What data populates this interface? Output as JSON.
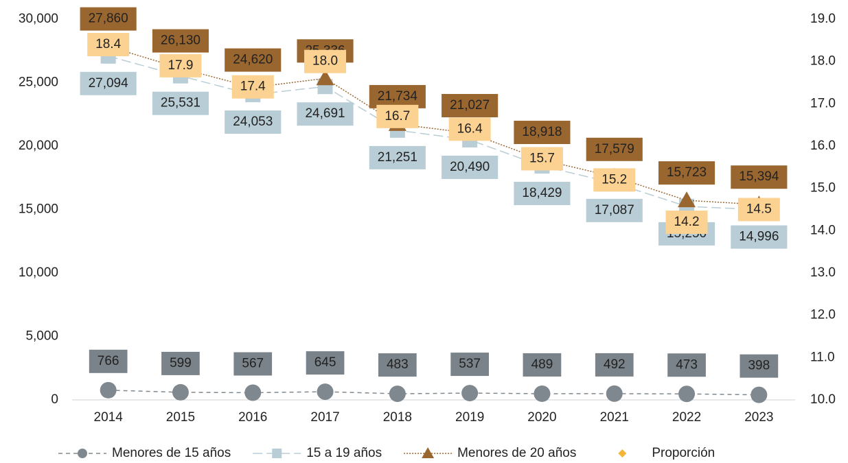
{
  "chart_data": {
    "type": "line",
    "categories": [
      "2014",
      "2015",
      "2016",
      "2017",
      "2018",
      "2019",
      "2020",
      "2021",
      "2022",
      "2023"
    ],
    "ylim": [
      0,
      30000
    ],
    "yticks": [
      0,
      {
        "value": 5000,
        "label": "5,000"
      },
      {
        "value": 10000,
        "label": "10,000"
      },
      {
        "value": 15000,
        "label": "15,000"
      },
      {
        "value": 20000,
        "label": "20,000"
      },
      {
        "value": 25000,
        "label": "25,000"
      },
      {
        "value": 30000,
        "label": "30,000"
      }
    ],
    "y2lim": [
      10,
      19
    ],
    "y2ticks": [
      {
        "value": 10,
        "label": "10.0"
      },
      {
        "value": 11,
        "label": "11.0"
      },
      {
        "value": 12,
        "label": "12.0"
      },
      {
        "value": 13,
        "label": "13.0"
      },
      {
        "value": 14,
        "label": "14.0"
      },
      {
        "value": 15,
        "label": "15.0"
      },
      {
        "value": 16,
        "label": "16.0"
      },
      {
        "value": 17,
        "label": "17.0"
      },
      {
        "value": 18,
        "label": "18.0"
      },
      {
        "value": 19,
        "label": "19.0"
      }
    ],
    "legend": "bottom",
    "series": [
      {
        "name": "Menores de 15 años",
        "color": "#7f888e",
        "marker": "circle",
        "label_color": "#7a8389",
        "label_position": "above",
        "values": [
          766,
          599,
          567,
          645,
          483,
          537,
          489,
          492,
          473,
          398
        ],
        "value_labels": [
          "766",
          "599",
          "567",
          "645",
          "483",
          "537",
          "489",
          "492",
          "473",
          "398"
        ]
      },
      {
        "name": "15 a 19 años",
        "color": "#b8cdd6",
        "marker": "square",
        "label_color": "#b8cdd6",
        "label_position": "below",
        "values": [
          27094,
          25531,
          24053,
          24691,
          21251,
          20490,
          18429,
          17087,
          15250,
          14996
        ],
        "value_labels": [
          "27,094",
          "25,531",
          "24,053",
          "24,691",
          "21,251",
          "20,490",
          "18,429",
          "17,087",
          "15,250",
          "14,996"
        ]
      },
      {
        "name": "Menores de 20 años",
        "color": "#9a6630",
        "marker": "triangle",
        "label_color": "#9a6630",
        "label_position": "above",
        "values": [
          27860,
          26130,
          24620,
          25336,
          21734,
          21027,
          18918,
          17579,
          15723,
          15394
        ],
        "value_labels": [
          "27,860",
          "26,130",
          "24,620",
          "25,336",
          "21,734",
          "21,027",
          "18,918",
          "17,579",
          "15,723",
          "15,394"
        ]
      },
      {
        "name": "Proporción",
        "color": "#f5b537",
        "marker": "diamond",
        "label_color": "#fcd293",
        "label_position": "center",
        "axis": "y2",
        "values": [
          18.4,
          17.9,
          17.4,
          18.0,
          16.7,
          16.4,
          15.7,
          15.2,
          14.2,
          14.5
        ],
        "value_labels": [
          "18.4",
          "17.9",
          "17.4",
          "18.0",
          "16.7",
          "16.4",
          "15.7",
          "15.2",
          "14.2",
          "14.5"
        ]
      }
    ]
  }
}
